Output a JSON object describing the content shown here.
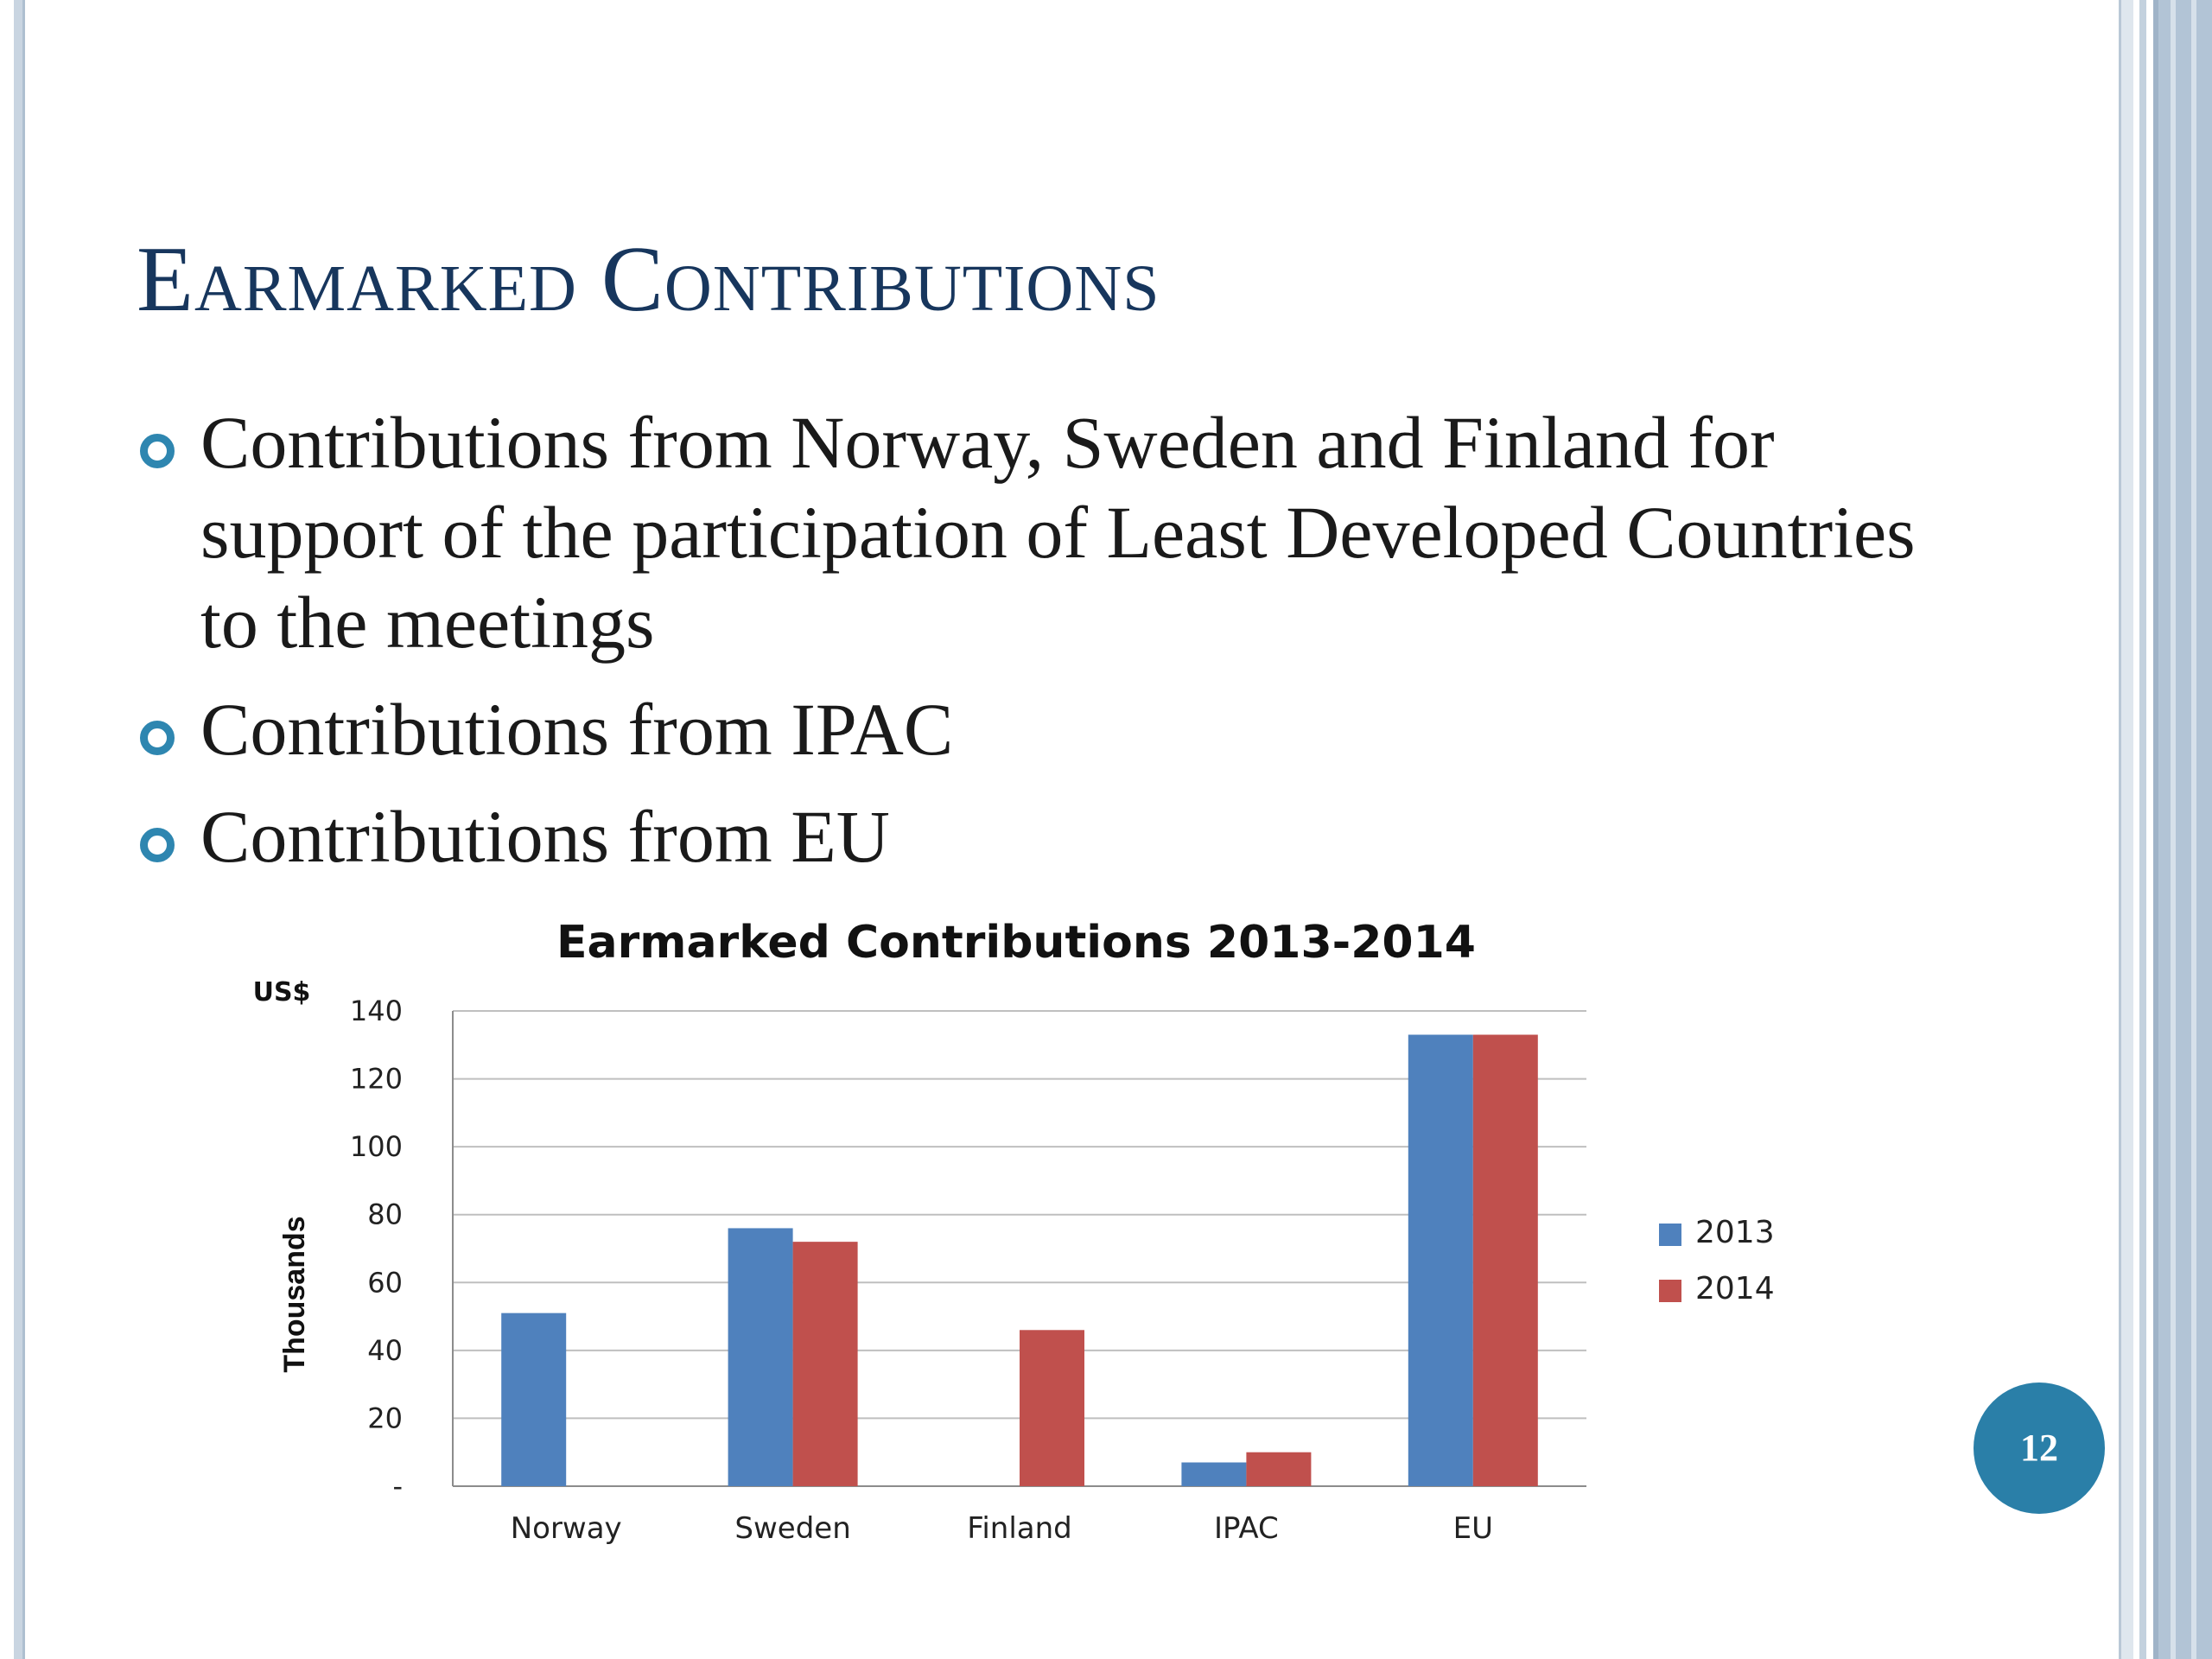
{
  "slide": {
    "title": "Earmarked Contributions",
    "bullets": [
      "Contributions from Norway, Sweden and Finland for support of the participation of Least Developed Countries to the meetings",
      "Contributions from IPAC",
      "Contributions from EU"
    ],
    "page_number": "12"
  },
  "chart_data": {
    "type": "bar",
    "title": "Earmarked Contributions 2013-2014",
    "unit_label": "US$",
    "ylabel": "Thousands",
    "xlabel": "",
    "categories": [
      "Norway",
      "Sweden",
      "Finland",
      "IPAC",
      "EU"
    ],
    "series": [
      {
        "name": "2013",
        "color": "#4f81bd",
        "values": [
          51,
          76,
          0,
          7,
          133
        ]
      },
      {
        "name": "2014",
        "color": "#c0504d",
        "values": [
          0,
          72,
          46,
          10,
          133
        ]
      }
    ],
    "ylim": [
      0,
      140
    ],
    "yticks": [
      0,
      20,
      40,
      60,
      80,
      100,
      120,
      140
    ],
    "ytick_labels": [
      "-",
      "20",
      "40",
      "60",
      "80",
      "100",
      "120",
      "140"
    ],
    "grid": true,
    "legend_position": "right"
  }
}
